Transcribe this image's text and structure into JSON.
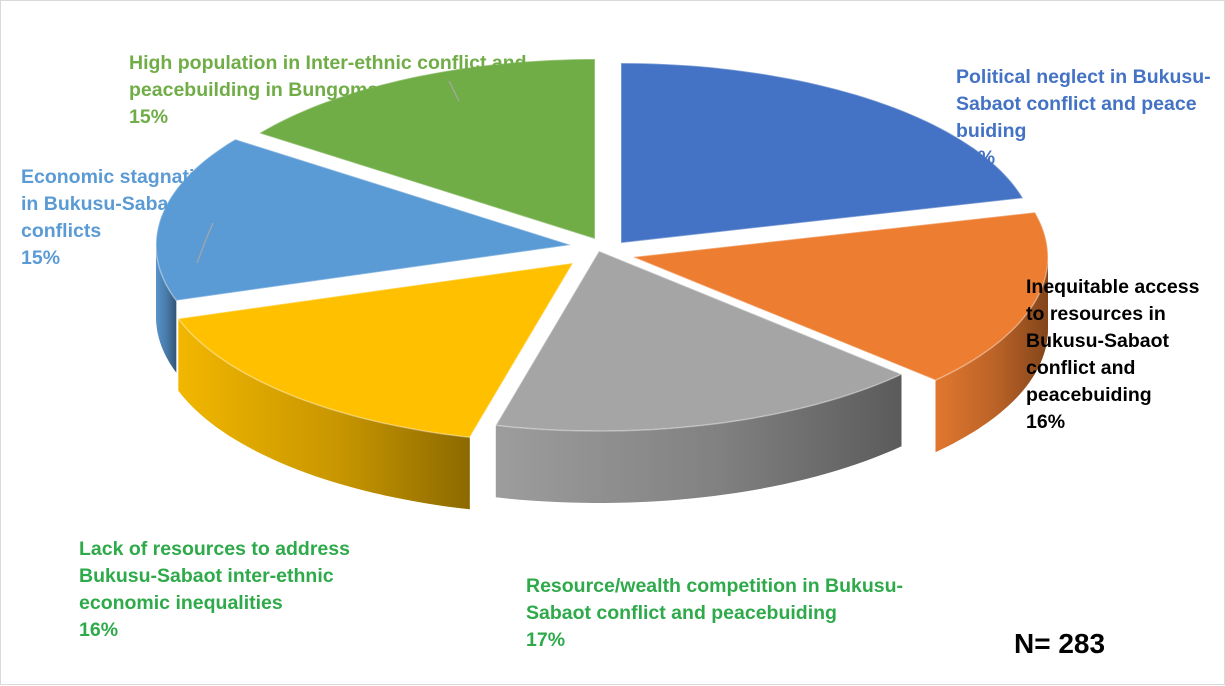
{
  "chart_data": {
    "type": "pie",
    "title": "",
    "slices": [
      {
        "label": "Political neglect in Bukusu-Sabaot conflict and peace buiding",
        "pct_label": "21%",
        "value": 21,
        "color": "#4472c4",
        "label_color": "#4472c4"
      },
      {
        "label": "Inequitable access to resources in Bukusu-Sabaot conflict and peacebuiding",
        "pct_label": "16%",
        "value": 16,
        "color": "#ed7d31",
        "label_color": "#000000"
      },
      {
        "label": "Resource/wealth competition in Bukusu-Sabaot conflict and peacebuiding",
        "pct_label": "17%",
        "value": 17,
        "color": "#a5a5a5",
        "label_color": "#2eaa4a"
      },
      {
        "label": "Lack of resources to address Bukusu-Sabaot inter-ethnic economic inequalities",
        "pct_label": "16%",
        "value": 16,
        "color": "#ffc000",
        "label_color": "#2eaa4a"
      },
      {
        "label": "Economic stagnation in Bukusu-Sabaot conflicts",
        "pct_label": "15%",
        "value": 15,
        "color": "#5b9bd5",
        "label_color": "#5b9bd5"
      },
      {
        "label": "High population in Inter-ethnic conflict and peacebuilding in Bungoma",
        "pct_label": "15%",
        "value": 15,
        "color": "#70ad47",
        "label_color": "#70ad47"
      }
    ],
    "note": "N= 283",
    "legend": "none",
    "style": "3d-exploded"
  }
}
